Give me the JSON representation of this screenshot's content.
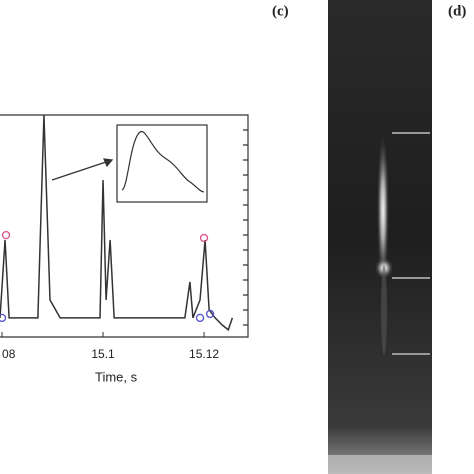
{
  "chart_data": {
    "type": "line",
    "xlabel": "Time, s",
    "x": [
      15.0796,
      15.0806,
      15.0814,
      15.0871,
      15.0883,
      15.0895,
      15.0915,
      15.0994,
      15.1,
      15.1006,
      15.1014,
      15.1022,
      15.1162,
      15.1172,
      15.1178,
      15.1192,
      15.1202,
      15.121,
      15.1222,
      15.1236,
      15.1248,
      15.1256
    ],
    "series": [
      {
        "color": "#333333",
        "values": [
          8.6,
          43.7,
          8.6,
          8.6,
          100,
          16.7,
          8.6,
          8.6,
          70.7,
          16.7,
          43.7,
          8.6,
          8.6,
          24.8,
          8.6,
          16.7,
          43.7,
          12.2,
          8.6,
          5.4,
          3.2,
          8.6
        ]
      }
    ],
    "peak_markers": {
      "color": "#e0508a",
      "x": [
        15.0808,
        15.12
      ],
      "values": [
        45.9,
        44.6
      ]
    },
    "base_markers": {
      "color": "#5050d0",
      "x": [
        15.08,
        15.1192,
        15.1212
      ],
      "values": [
        8.6,
        8.6,
        10.4
      ]
    },
    "xlim": [
      15.0796,
      15.1287
    ],
    "ylim": [
      0,
      100
    ],
    "xticks": [
      {
        "value": 15.08,
        "label": "08"
      },
      15.1,
      15.12
    ],
    "panel_labels": [
      "(c)",
      "(d)"
    ]
  }
}
